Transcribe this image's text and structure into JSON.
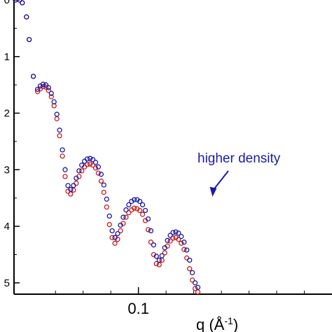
{
  "chart_data": {
    "type": "scatter",
    "title": "",
    "xlabel": "q (Å",
    "xlabel_sup": "-1",
    "xlabel_close": ")",
    "ylabel": "",
    "xlim": [
      0.055,
      0.17
    ],
    "ylim": [
      5.2,
      0
    ],
    "yticks": [
      {
        "value": 0,
        "label": "0"
      },
      {
        "value": 1,
        "label": "1"
      },
      {
        "value": 2,
        "label": "2"
      },
      {
        "value": 3,
        "label": "3"
      },
      {
        "value": 4,
        "label": "4"
      },
      {
        "value": 5,
        "label": "5"
      }
    ],
    "xticks_major": [
      {
        "value": 0.1,
        "label": "0.1"
      }
    ],
    "xticks_minor": [
      0.07,
      0.08,
      0.09,
      0.11,
      0.12,
      0.13,
      0.14,
      0.15,
      0.16
    ],
    "grid": false,
    "marker": "open-circle",
    "annotation": {
      "text": "higher density",
      "color": "#1a1aa6",
      "x": 0.125,
      "y": 3.55
    },
    "series": [
      {
        "color": "#1a1aa6",
        "points": [
          [
            0.0555,
            0.0
          ],
          [
            0.057,
            0.0
          ],
          [
            0.058,
            0.05
          ],
          [
            0.0595,
            0.3
          ],
          [
            0.0605,
            0.7
          ],
          [
            0.062,
            1.35
          ],
          [
            0.0635,
            1.58
          ],
          [
            0.0645,
            1.52
          ],
          [
            0.0655,
            1.49
          ],
          [
            0.0665,
            1.5
          ],
          [
            0.0675,
            1.55
          ],
          [
            0.0685,
            1.65
          ],
          [
            0.0695,
            1.8
          ],
          [
            0.0705,
            2.02
          ],
          [
            0.0715,
            2.3
          ],
          [
            0.0725,
            2.65
          ],
          [
            0.0735,
            3.0
          ],
          [
            0.0745,
            3.28
          ],
          [
            0.0755,
            3.35
          ],
          [
            0.0765,
            3.28
          ],
          [
            0.0775,
            3.15
          ],
          [
            0.0785,
            3.02
          ],
          [
            0.0795,
            2.92
          ],
          [
            0.0805,
            2.85
          ],
          [
            0.0815,
            2.81
          ],
          [
            0.0825,
            2.8
          ],
          [
            0.0835,
            2.82
          ],
          [
            0.0845,
            2.87
          ],
          [
            0.0855,
            2.95
          ],
          [
            0.0865,
            3.08
          ],
          [
            0.0875,
            3.27
          ],
          [
            0.0885,
            3.52
          ],
          [
            0.0895,
            3.82
          ],
          [
            0.0905,
            4.08
          ],
          [
            0.0915,
            4.2
          ],
          [
            0.0925,
            4.13
          ],
          [
            0.0935,
            3.98
          ],
          [
            0.0945,
            3.84
          ],
          [
            0.0955,
            3.71
          ],
          [
            0.0965,
            3.62
          ],
          [
            0.0975,
            3.56
          ],
          [
            0.0985,
            3.53
          ],
          [
            0.0995,
            3.53
          ],
          [
            0.1005,
            3.56
          ],
          [
            0.1015,
            3.62
          ],
          [
            0.1025,
            3.72
          ],
          [
            0.1035,
            3.87
          ],
          [
            0.1045,
            4.08
          ],
          [
            0.1055,
            4.33
          ],
          [
            0.1065,
            4.53
          ],
          [
            0.1075,
            4.6
          ],
          [
            0.1085,
            4.52
          ],
          [
            0.1095,
            4.38
          ],
          [
            0.1105,
            4.25
          ],
          [
            0.1115,
            4.16
          ],
          [
            0.1125,
            4.11
          ],
          [
            0.1135,
            4.1
          ],
          [
            0.1145,
            4.12
          ],
          [
            0.1155,
            4.18
          ],
          [
            0.1165,
            4.28
          ],
          [
            0.1175,
            4.42
          ],
          [
            0.1185,
            4.6
          ],
          [
            0.1195,
            4.82
          ],
          [
            0.1205,
            5.0
          ],
          [
            0.1215,
            5.08
          ]
        ]
      },
      {
        "color": "#c81e1e",
        "points": [
          [
            0.0555,
            0.0
          ],
          [
            0.057,
            0.0
          ],
          [
            0.058,
            0.05
          ],
          [
            0.0595,
            0.3
          ],
          [
            0.0605,
            0.7
          ],
          [
            0.062,
            1.35
          ],
          [
            0.0635,
            1.62
          ],
          [
            0.0645,
            1.57
          ],
          [
            0.0655,
            1.53
          ],
          [
            0.0665,
            1.54
          ],
          [
            0.0675,
            1.6
          ],
          [
            0.0685,
            1.71
          ],
          [
            0.0695,
            1.87
          ],
          [
            0.0705,
            2.1
          ],
          [
            0.0715,
            2.4
          ],
          [
            0.0725,
            2.76
          ],
          [
            0.0735,
            3.12
          ],
          [
            0.0745,
            3.38
          ],
          [
            0.0755,
            3.43
          ],
          [
            0.0765,
            3.36
          ],
          [
            0.0775,
            3.24
          ],
          [
            0.0785,
            3.12
          ],
          [
            0.0795,
            3.02
          ],
          [
            0.0805,
            2.95
          ],
          [
            0.0815,
            2.91
          ],
          [
            0.0825,
            2.9
          ],
          [
            0.0835,
            2.92
          ],
          [
            0.0845,
            2.97
          ],
          [
            0.0855,
            3.06
          ],
          [
            0.0865,
            3.2
          ],
          [
            0.0875,
            3.4
          ],
          [
            0.0885,
            3.66
          ],
          [
            0.0895,
            3.97
          ],
          [
            0.0905,
            4.2
          ],
          [
            0.0915,
            4.3
          ],
          [
            0.0925,
            4.23
          ],
          [
            0.0935,
            4.08
          ],
          [
            0.0945,
            3.95
          ],
          [
            0.0955,
            3.84
          ],
          [
            0.0965,
            3.76
          ],
          [
            0.0975,
            3.71
          ],
          [
            0.0985,
            3.68
          ],
          [
            0.0995,
            3.69
          ],
          [
            0.1005,
            3.72
          ],
          [
            0.1015,
            3.79
          ],
          [
            0.1025,
            3.9
          ],
          [
            0.1035,
            4.06
          ],
          [
            0.1045,
            4.28
          ],
          [
            0.1055,
            4.5
          ],
          [
            0.1065,
            4.66
          ],
          [
            0.1075,
            4.68
          ],
          [
            0.1085,
            4.6
          ],
          [
            0.1095,
            4.47
          ],
          [
            0.1105,
            4.35
          ],
          [
            0.1115,
            4.26
          ],
          [
            0.1125,
            4.21
          ],
          [
            0.1135,
            4.2
          ],
          [
            0.1145,
            4.23
          ],
          [
            0.1155,
            4.3
          ],
          [
            0.1165,
            4.41
          ],
          [
            0.1175,
            4.56
          ],
          [
            0.1185,
            4.75
          ],
          [
            0.1195,
            4.95
          ],
          [
            0.1205,
            5.1
          ],
          [
            0.1215,
            5.16
          ]
        ]
      }
    ]
  }
}
